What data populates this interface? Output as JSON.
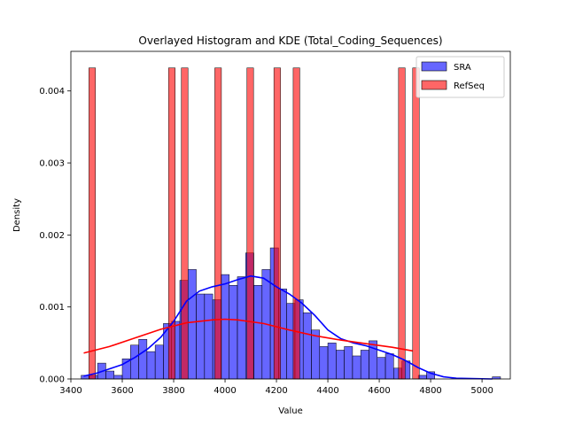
{
  "chart_data": {
    "type": "bar",
    "title": "Overlayed Histogram and KDE (Total_Coding_Sequences)",
    "xlabel": "Value",
    "ylabel": "Density",
    "xlim": [
      3400,
      5110
    ],
    "ylim": [
      0,
      0.00455
    ],
    "xticks": [
      3400,
      3600,
      3800,
      4000,
      4200,
      4400,
      4600,
      4800,
      5000
    ],
    "yticks": [
      0.0,
      0.001,
      0.002,
      0.003,
      0.004
    ],
    "xtick_labels": [
      "3400",
      "3600",
      "3800",
      "4000",
      "4200",
      "4400",
      "4600",
      "4800",
      "5000"
    ],
    "ytick_labels": [
      "0.000",
      "0.001",
      "0.002",
      "0.003",
      "0.004"
    ],
    "legend_position": "top-right",
    "grid": false,
    "series": [
      {
        "name": "SRA",
        "kind": "histogram",
        "color": "#0000ff",
        "bin_start": 3440,
        "bin_width": 32,
        "values": [
          5e-05,
          5e-05,
          0.00022,
          0.00011,
          5e-05,
          0.00028,
          0.00047,
          0.00055,
          0.00038,
          0.00047,
          0.00077,
          0.0008,
          0.00137,
          0.00152,
          0.00118,
          0.00118,
          0.0011,
          0.00145,
          0.0013,
          0.00142,
          0.00175,
          0.0013,
          0.00152,
          0.00182,
          0.00125,
          0.00105,
          0.0011,
          0.00092,
          0.00068,
          0.00045,
          0.0005,
          0.0004,
          0.00045,
          0.00032,
          0.0004,
          0.00053,
          0.0003,
          0.00035,
          0.00015,
          0.00025,
          0.0,
          5e-05,
          0.0001,
          0.0,
          0.0,
          0.0,
          0.0,
          0.0,
          0.0,
          0.0,
          3e-05
        ]
      },
      {
        "name": "RefSeq",
        "kind": "histogram",
        "color": "#ff0000",
        "bin_width": 25.8,
        "bars": [
          {
            "x": 3470,
            "value": 0.00432
          },
          {
            "x": 3780,
            "value": 0.00432
          },
          {
            "x": 3830,
            "value": 0.00432
          },
          {
            "x": 3960,
            "value": 0.00432
          },
          {
            "x": 4085,
            "value": 0.00432
          },
          {
            "x": 4190,
            "value": 0.00432
          },
          {
            "x": 4265,
            "value": 0.00432
          },
          {
            "x": 4675,
            "value": 0.00432
          },
          {
            "x": 4730,
            "value": 0.00432
          }
        ]
      }
    ],
    "kde": [
      {
        "series": "SRA",
        "color": "#0000ff",
        "points": [
          [
            3450,
            4e-05
          ],
          [
            3500,
            8e-05
          ],
          [
            3550,
            0.00014
          ],
          [
            3600,
            0.0002
          ],
          [
            3650,
            0.0003
          ],
          [
            3700,
            0.00042
          ],
          [
            3750,
            0.00058
          ],
          [
            3800,
            0.0008
          ],
          [
            3850,
            0.00108
          ],
          [
            3900,
            0.00122
          ],
          [
            3950,
            0.00128
          ],
          [
            4000,
            0.00132
          ],
          [
            4050,
            0.00138
          ],
          [
            4100,
            0.00143
          ],
          [
            4150,
            0.0014
          ],
          [
            4200,
            0.00128
          ],
          [
            4250,
            0.00118
          ],
          [
            4300,
            0.00105
          ],
          [
            4350,
            0.00088
          ],
          [
            4400,
            0.00068
          ],
          [
            4450,
            0.00056
          ],
          [
            4500,
            0.0005
          ],
          [
            4550,
            0.00046
          ],
          [
            4600,
            0.0004
          ],
          [
            4650,
            0.00034
          ],
          [
            4700,
            0.00026
          ],
          [
            4750,
            0.00016
          ],
          [
            4800,
            8e-05
          ],
          [
            4850,
            3e-05
          ],
          [
            4900,
            1e-05
          ],
          [
            5040,
            0.0
          ]
        ]
      },
      {
        "series": "RefSeq",
        "color": "#ff0000",
        "points": [
          [
            3450,
            0.00036
          ],
          [
            3550,
            0.00045
          ],
          [
            3650,
            0.00057
          ],
          [
            3750,
            0.00069
          ],
          [
            3850,
            0.00078
          ],
          [
            3950,
            0.00082
          ],
          [
            4000,
            0.00083
          ],
          [
            4050,
            0.00082
          ],
          [
            4150,
            0.00077
          ],
          [
            4250,
            0.00068
          ],
          [
            4350,
            0.0006
          ],
          [
            4450,
            0.00054
          ],
          [
            4550,
            0.00049
          ],
          [
            4650,
            0.00044
          ],
          [
            4730,
            0.00039
          ]
        ]
      }
    ]
  }
}
